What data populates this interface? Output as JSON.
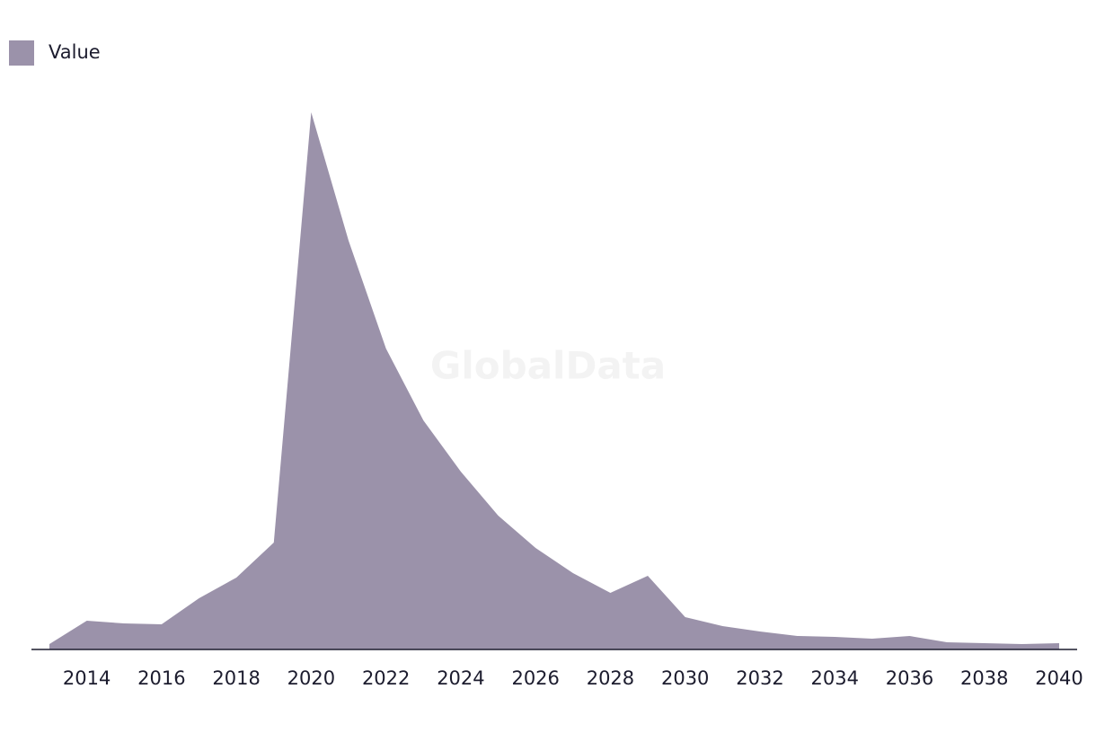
{
  "chart_data": {
    "type": "area",
    "watermark": "GlobalData",
    "x": [
      2013,
      2014,
      2015,
      2016,
      2017,
      2018,
      2019,
      2020,
      2021,
      2022,
      2023,
      2024,
      2025,
      2026,
      2027,
      2028,
      2029,
      2030,
      2031,
      2032,
      2033,
      2034,
      2035,
      2036,
      2037,
      2038,
      2039,
      2040
    ],
    "series": [
      {
        "name": "Value",
        "color": "#9b92aa",
        "values": [
          6,
          32,
          29,
          28,
          57,
          80,
          119,
          598,
          455,
          335,
          255,
          198,
          149,
          113,
          85,
          63,
          82,
          36,
          26,
          20,
          15,
          14,
          12,
          15,
          8,
          7,
          6,
          7
        ]
      }
    ],
    "xlim": [
      2013,
      2040
    ],
    "xticks": [
      2014,
      2016,
      2018,
      2020,
      2022,
      2024,
      2026,
      2028,
      2030,
      2032,
      2034,
      2036,
      2038,
      2040
    ],
    "ylim": [
      0,
      600
    ],
    "legend": "top-left"
  }
}
